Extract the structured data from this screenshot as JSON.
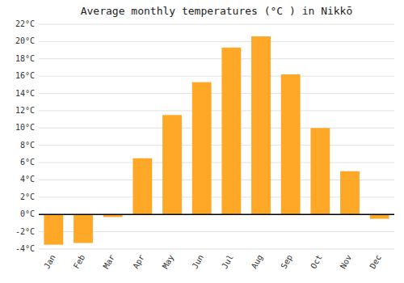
{
  "chart_data": {
    "type": "bar",
    "title": "Average monthly temperatures (°C ) in Nikkō",
    "categories": [
      "Jan",
      "Feb",
      "Mar",
      "Apr",
      "May",
      "Jun",
      "Jul",
      "Aug",
      "Sep",
      "Oct",
      "Nov",
      "Dec"
    ],
    "values": [
      -3.5,
      -3.3,
      -0.3,
      6.5,
      11.5,
      15.3,
      19.3,
      20.6,
      16.2,
      10.0,
      5.0,
      -0.5
    ],
    "color": "#FFA726",
    "ylim": [
      -4,
      22
    ],
    "yticks": [
      {
        "value": -4,
        "label": "-4°C"
      },
      {
        "value": -2,
        "label": "-2°C"
      },
      {
        "value": 0,
        "label": "0°C"
      },
      {
        "value": 2,
        "label": "2°C"
      },
      {
        "value": 4,
        "label": "4°C"
      },
      {
        "value": 6,
        "label": "6°C"
      },
      {
        "value": 8,
        "label": "8°C"
      },
      {
        "value": 10,
        "label": "10°C"
      },
      {
        "value": 12,
        "label": "12°C"
      },
      {
        "value": 14,
        "label": "14°C"
      },
      {
        "value": 16,
        "label": "16°C"
      },
      {
        "value": 18,
        "label": "18°C"
      },
      {
        "value": 20,
        "label": "20°C"
      },
      {
        "value": 22,
        "label": "22°C"
      }
    ],
    "grid": true
  }
}
